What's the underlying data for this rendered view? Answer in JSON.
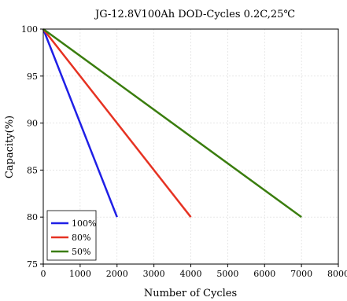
{
  "chart_data": {
    "type": "line",
    "title": "JG-12.8V100Ah DOD-Cycles  0.2C,25℃",
    "xlabel": "Number of Cycles",
    "ylabel": "Capacity(%)",
    "xlim": [
      0,
      8000
    ],
    "ylim": [
      75,
      100
    ],
    "x_ticks": [
      0,
      1000,
      2000,
      3000,
      4000,
      5000,
      6000,
      7000,
      8000
    ],
    "y_ticks": [
      75,
      80,
      85,
      90,
      95,
      100
    ],
    "grid": true,
    "legend_position": "bottom-left",
    "series": [
      {
        "name": "100%",
        "color": "#1f1fe6",
        "x": [
          0,
          2000
        ],
        "y": [
          100,
          80
        ]
      },
      {
        "name": "80%",
        "color": "#e63222",
        "x": [
          0,
          4000
        ],
        "y": [
          100,
          80
        ]
      },
      {
        "name": "50%",
        "color": "#3a7d0e",
        "x": [
          0,
          7000
        ],
        "y": [
          100,
          80
        ]
      }
    ]
  }
}
